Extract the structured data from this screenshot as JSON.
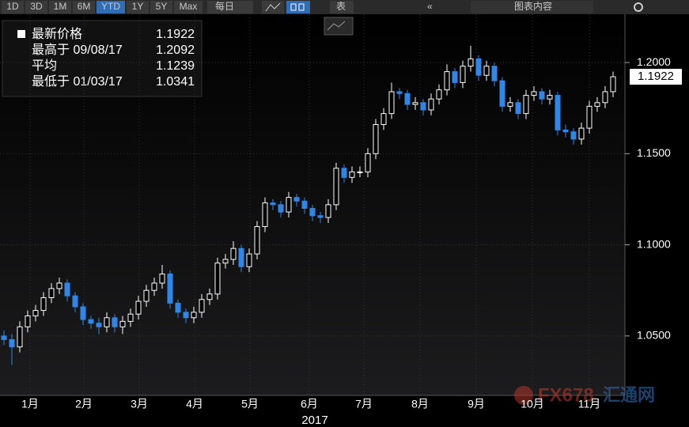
{
  "toolbar": {
    "ranges": [
      "1D",
      "3D",
      "1M",
      "6M",
      "YTD",
      "1Y",
      "5Y",
      "Max"
    ],
    "frequency": "每日",
    "table": "表",
    "chart_content": "图表内容"
  },
  "watermark": {
    "brand": "FX678",
    "name": "汇通网"
  },
  "chart_data": {
    "type": "candlestick",
    "info": {
      "last_label": "最新价格",
      "high_label": "最高于 09/08/17",
      "avg_label": "平均",
      "average": 1.1239,
      "low_label": "最低于 01/03/17"
    },
    "x_label": "2017",
    "up_color": "#ffffff",
    "down_color": "#2f86e6",
    "grid": true,
    "ylim": [
      1.0174,
      1.2265
    ],
    "yticks": [
      {
        "value": 1.05,
        "label": "1.0500"
      },
      {
        "value": 1.1,
        "label": "1.1000"
      },
      {
        "value": 1.15,
        "label": "1.1500"
      },
      {
        "value": 1.2,
        "label": "1.2000"
      }
    ],
    "xticks": [
      {
        "value": 3.3,
        "label": "1月"
      },
      {
        "value": 10.1,
        "label": "2月"
      },
      {
        "value": 17.1,
        "label": "3月"
      },
      {
        "value": 24.1,
        "label": "4月"
      },
      {
        "value": 31.1,
        "label": "5月"
      },
      {
        "value": 38.6,
        "label": "6月"
      },
      {
        "value": 45.5,
        "label": "7月"
      },
      {
        "value": 52.6,
        "label": "8月"
      },
      {
        "value": 59.7,
        "label": "9月"
      },
      {
        "value": 66.8,
        "label": "10月"
      },
      {
        "value": 74.0,
        "label": "11月"
      }
    ],
    "series": [
      {
        "open": [
          1.05,
          1.048,
          1.044,
          1.055,
          1.061,
          1.064,
          1.071,
          1.076,
          1.079,
          1.072,
          1.066,
          1.059,
          1.057,
          1.055,
          1.06,
          1.055,
          1.058,
          1.062,
          1.069,
          1.075,
          1.079,
          1.084,
          1.068,
          1.063,
          1.06,
          1.063,
          1.07,
          1.073,
          1.09,
          1.092,
          1.098,
          1.088,
          1.095,
          1.11,
          1.123,
          1.122,
          1.118,
          1.126,
          1.124,
          1.12,
          1.116,
          1.115,
          1.122,
          1.142,
          1.137,
          1.14,
          1.14,
          1.15,
          1.166,
          1.172,
          1.184,
          1.183,
          1.177,
          1.178,
          1.174,
          1.18,
          1.185,
          1.195,
          1.189,
          1.198,
          1.202,
          1.193,
          1.198,
          1.19,
          1.176,
          1.178,
          1.172,
          1.182,
          1.184,
          1.18,
          1.182,
          1.163,
          1.162,
          1.158,
          1.164,
          1.176,
          1.178,
          1.184
        ],
        "high": [
          1.053,
          1.051,
          1.058,
          1.064,
          1.067,
          1.074,
          1.079,
          1.082,
          1.081,
          1.074,
          1.068,
          1.061,
          1.06,
          1.063,
          1.062,
          1.061,
          1.065,
          1.072,
          1.078,
          1.082,
          1.089,
          1.086,
          1.07,
          1.065,
          1.066,
          1.073,
          1.076,
          1.093,
          1.095,
          1.102,
          1.1,
          1.098,
          1.113,
          1.126,
          1.125,
          1.124,
          1.129,
          1.128,
          1.126,
          1.122,
          1.118,
          1.125,
          1.145,
          1.144,
          1.143,
          1.143,
          1.153,
          1.169,
          1.175,
          1.189,
          1.186,
          1.185,
          1.181,
          1.18,
          1.183,
          1.188,
          1.199,
          1.197,
          1.201,
          1.2092,
          1.204,
          1.201,
          1.2,
          1.192,
          1.181,
          1.18,
          1.185,
          1.187,
          1.186,
          1.185,
          1.184,
          1.166,
          1.164,
          1.167,
          1.179,
          1.181,
          1.187,
          1.195
        ],
        "low": [
          1.045,
          1.0341,
          1.041,
          1.052,
          1.058,
          1.061,
          1.068,
          1.073,
          1.069,
          1.063,
          1.056,
          1.054,
          1.051,
          1.052,
          1.052,
          1.051,
          1.055,
          1.059,
          1.066,
          1.072,
          1.076,
          1.065,
          1.06,
          1.057,
          1.057,
          1.06,
          1.067,
          1.07,
          1.087,
          1.089,
          1.085,
          1.085,
          1.092,
          1.107,
          1.119,
          1.115,
          1.115,
          1.121,
          1.117,
          1.113,
          1.112,
          1.112,
          1.119,
          1.134,
          1.134,
          1.137,
          1.137,
          1.147,
          1.163,
          1.169,
          1.18,
          1.174,
          1.174,
          1.171,
          1.171,
          1.177,
          1.182,
          1.186,
          1.186,
          1.195,
          1.19,
          1.19,
          1.187,
          1.173,
          1.173,
          1.169,
          1.169,
          1.179,
          1.177,
          1.177,
          1.16,
          1.159,
          1.155,
          1.155,
          1.161,
          1.173,
          1.175,
          1.181
        ],
        "close": [
          1.048,
          1.044,
          1.055,
          1.061,
          1.064,
          1.071,
          1.076,
          1.079,
          1.072,
          1.066,
          1.059,
          1.057,
          1.055,
          1.06,
          1.055,
          1.058,
          1.062,
          1.069,
          1.075,
          1.079,
          1.084,
          1.068,
          1.063,
          1.06,
          1.063,
          1.07,
          1.073,
          1.09,
          1.092,
          1.098,
          1.088,
          1.095,
          1.11,
          1.123,
          1.122,
          1.118,
          1.126,
          1.124,
          1.12,
          1.116,
          1.115,
          1.122,
          1.142,
          1.137,
          1.14,
          1.14,
          1.15,
          1.166,
          1.172,
          1.184,
          1.183,
          1.177,
          1.178,
          1.174,
          1.18,
          1.185,
          1.195,
          1.189,
          1.198,
          1.202,
          1.193,
          1.198,
          1.19,
          1.176,
          1.178,
          1.172,
          1.182,
          1.184,
          1.18,
          1.182,
          1.163,
          1.162,
          1.158,
          1.164,
          1.176,
          1.178,
          1.184,
          1.1922
        ]
      }
    ]
  }
}
